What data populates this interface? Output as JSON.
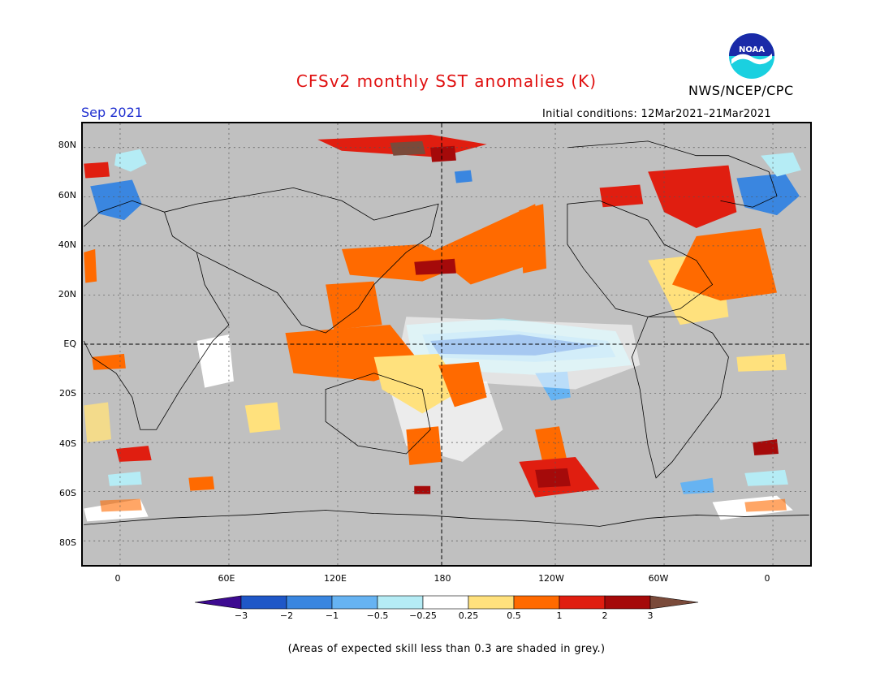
{
  "header": {
    "title": "CFSv2 monthly SST anomalies (K)",
    "agency": "NWS/NCEP/CPC",
    "logo_text": "NOAA",
    "month": "Sep 2021",
    "initial_conditions": "Initial conditions: 12Mar2021–21Mar2021"
  },
  "map": {
    "projection": "cylindrical-equidistant",
    "lon_range": [
      -20,
      380
    ],
    "lat_range": [
      -90,
      90
    ],
    "lat_labels": [
      "80N",
      "60N",
      "40N",
      "20N",
      "EQ",
      "20S",
      "40S",
      "60S",
      "80S"
    ],
    "lon_labels": [
      "0",
      "60E",
      "120E",
      "180",
      "120W",
      "60W",
      "0"
    ],
    "land_color": "#c0c0c0"
  },
  "colorbar": {
    "ticks": [
      "−3",
      "−2",
      "−1",
      "−0.5",
      "−0.25",
      "0.25",
      "0.5",
      "1",
      "2",
      "3"
    ],
    "colors": [
      "#3d0a91",
      "#1f57c7",
      "#3a86e0",
      "#66b3f2",
      "#b5ecf5",
      "#ffffff",
      "#ffe17d",
      "#ff6a00",
      "#e01e10",
      "#a50a0a",
      "#7a4a3a"
    ]
  },
  "footnote": "(Areas of expected skill less than 0.3 are shaded in grey.)"
}
